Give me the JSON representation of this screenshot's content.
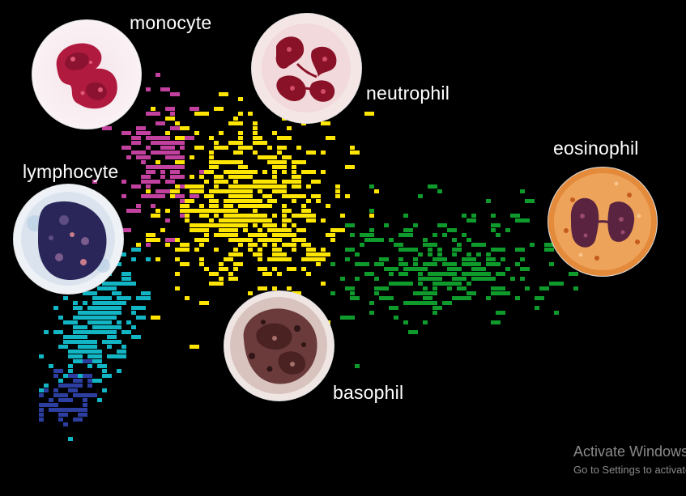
{
  "labels": {
    "monocyte": "monocyte",
    "neutrophil": "neutrophil",
    "eosinophil": "eosinophil",
    "lymphocyte": "lymphocyte",
    "basophil": "basophil"
  },
  "colors": {
    "background": "#000000",
    "monocyte_cluster": "#c2419e",
    "neutrophil_cluster": "#ffe600",
    "eosinophil_cluster": "#0f9b2c",
    "lymphocyte_cluster": "#12b5c4",
    "basophil_cluster": "#2c3ea0"
  },
  "watermark": {
    "title": "Activate Windows",
    "subtitle": "Go to Settings to activate Windows."
  }
}
